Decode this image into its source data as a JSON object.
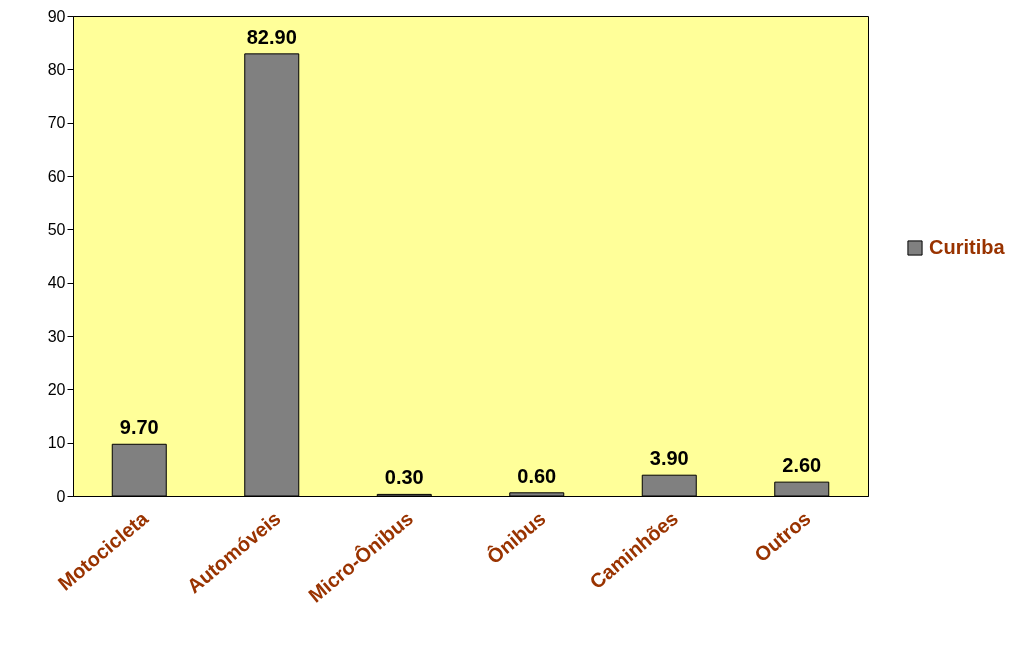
{
  "chart_data": {
    "type": "bar",
    "categories": [
      "Motocicleta",
      "Automóveis",
      "Micro-Ônibus",
      "Ônibus",
      "Caminhões",
      "Outros"
    ],
    "series": [
      {
        "name": "Curitiba",
        "color": "#808080",
        "values": [
          9.7,
          82.9,
          0.3,
          0.6,
          3.9,
          2.6
        ],
        "value_labels": [
          "9.70",
          "82.90",
          "0.30",
          "0.60",
          "3.90",
          "2.60"
        ]
      }
    ],
    "ylim": [
      0,
      90
    ],
    "yticks": [
      0,
      10,
      20,
      30,
      40,
      50,
      60,
      70,
      80,
      90
    ],
    "grid": false,
    "legend": "right"
  }
}
